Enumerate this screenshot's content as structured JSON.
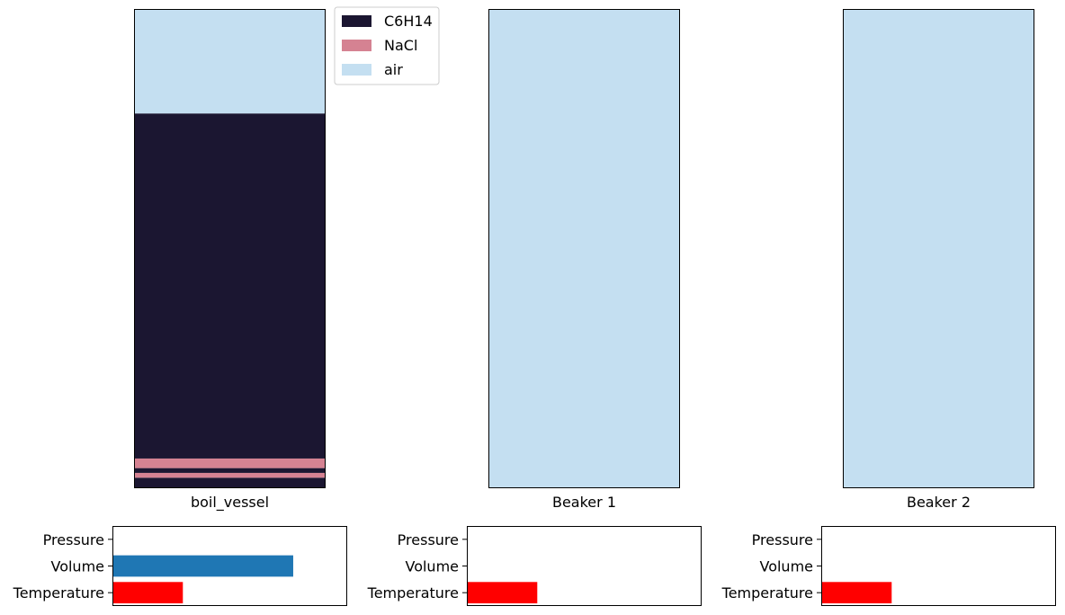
{
  "legend": [
    {
      "label": "C6H14",
      "color": "#1b1631"
    },
    {
      "label": "NaCl",
      "color": "#d58292"
    },
    {
      "label": "air",
      "color": "#c4dff1"
    }
  ],
  "chart_data": [
    {
      "type": "stacked-column",
      "title": "",
      "xlabel": "boil_vessel",
      "ylim": [
        0,
        1
      ],
      "layers_bottom_to_top": [
        {
          "material": "C6H14",
          "from": 0.0,
          "to": 0.022
        },
        {
          "material": "NaCl",
          "from": 0.022,
          "to": 0.032
        },
        {
          "material": "C6H14",
          "from": 0.032,
          "to": 0.042
        },
        {
          "material": "NaCl",
          "from": 0.042,
          "to": 0.062
        },
        {
          "material": "C6H14",
          "from": 0.062,
          "to": 0.782
        },
        {
          "material": "air",
          "from": 0.782,
          "to": 1.0
        }
      ]
    },
    {
      "type": "stacked-column",
      "title": "",
      "xlabel": "Beaker 1",
      "ylim": [
        0,
        1
      ],
      "layers_bottom_to_top": [
        {
          "material": "air",
          "from": 0.0,
          "to": 1.0
        }
      ]
    },
    {
      "type": "stacked-column",
      "title": "",
      "xlabel": "Beaker 2",
      "ylim": [
        0,
        1
      ],
      "layers_bottom_to_top": [
        {
          "material": "air",
          "from": 0.0,
          "to": 1.0
        }
      ]
    },
    {
      "type": "bar",
      "orientation": "horizontal",
      "vessel": "boil_vessel",
      "categories": [
        "Pressure",
        "Volume",
        "Temperature"
      ],
      "values": [
        0,
        0.77,
        0.3
      ],
      "colors": [
        "#1f77b4",
        "#1f77b4",
        "#ff0000"
      ],
      "xlim": [
        0,
        1
      ]
    },
    {
      "type": "bar",
      "orientation": "horizontal",
      "vessel": "Beaker 1",
      "categories": [
        "Pressure",
        "Volume",
        "Temperature"
      ],
      "values": [
        0,
        0,
        0.3
      ],
      "colors": [
        "#1f77b4",
        "#1f77b4",
        "#ff0000"
      ],
      "xlim": [
        0,
        1
      ]
    },
    {
      "type": "bar",
      "orientation": "horizontal",
      "vessel": "Beaker 2",
      "categories": [
        "Pressure",
        "Volume",
        "Temperature"
      ],
      "values": [
        0,
        0,
        0.3
      ],
      "colors": [
        "#1f77b4",
        "#1f77b4",
        "#ff0000"
      ],
      "xlim": [
        0,
        1
      ]
    }
  ]
}
